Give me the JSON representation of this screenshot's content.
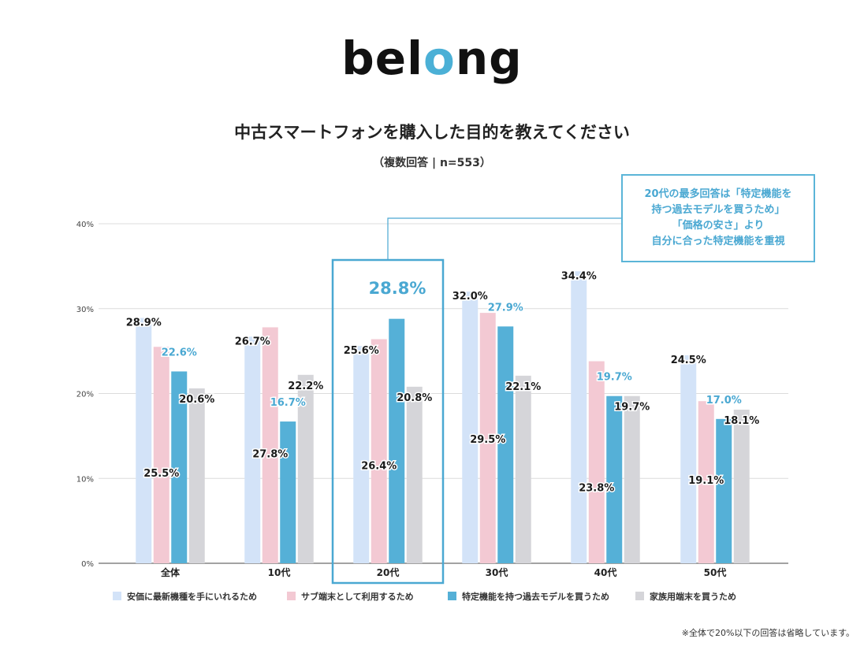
{
  "logo": {
    "part1": "bel",
    "part2": "o",
    "part3": "ng"
  },
  "header": {
    "title": "中古スマートフォンを購入した目的を教えてください",
    "subtitle": "（複数回答 | n=553）"
  },
  "callout": {
    "lines": [
      "20代の最多回答は「特定機能を",
      "持つ過去モデルを買うため」",
      "「価格の安さ」より",
      "自分に合った特定機能を重視"
    ]
  },
  "footnote": "※全体で20%以下の回答は省略しています。",
  "colors": {
    "series": [
      "#d3e3f8",
      "#f3c9d3",
      "#55b0d7",
      "#d5d5d9"
    ],
    "highlight": "#4aa8d2",
    "label_dark": "#1a1a1a"
  },
  "chart_data": {
    "type": "bar",
    "categories": [
      "全体",
      "10代",
      "20代",
      "30代",
      "40代",
      "50代"
    ],
    "ylim": [
      0,
      40
    ],
    "yticks": [
      0,
      10,
      20,
      30,
      40
    ],
    "ytick_labels": [
      "0%",
      "10%",
      "20%",
      "30%",
      "40%"
    ],
    "grid": true,
    "legend_position": "bottom",
    "highlight_category": "20代",
    "highlight_value_label": "28.8%",
    "series": [
      {
        "name": "安価に最新機種を手にいれるため",
        "values": [
          28.9,
          26.7,
          25.6,
          32.0,
          34.4,
          24.5
        ],
        "labels": [
          "28.9%",
          "26.7%",
          "25.6%",
          "32.0%",
          "34.4%",
          "24.5%"
        ]
      },
      {
        "name": "サブ端末として利用するため",
        "values": [
          25.5,
          27.8,
          26.4,
          29.5,
          23.8,
          19.1
        ],
        "labels": [
          "25.5%",
          "27.8%",
          "26.4%",
          "29.5%",
          "23.8%",
          "19.1%"
        ]
      },
      {
        "name": "特定機能を持つ過去モデルを買うため",
        "values": [
          22.6,
          16.7,
          28.8,
          27.9,
          19.7,
          17.0
        ],
        "labels": [
          "22.6%",
          "16.7%",
          "",
          "27.9%",
          "19.7%",
          "17.0%"
        ]
      },
      {
        "name": "家族用端末を買うため",
        "values": [
          20.6,
          22.2,
          20.8,
          22.1,
          19.7,
          18.1
        ],
        "labels": [
          "20.6%",
          "22.2%",
          "20.8%",
          "22.1%",
          "19.7%",
          "18.1%"
        ]
      }
    ]
  }
}
